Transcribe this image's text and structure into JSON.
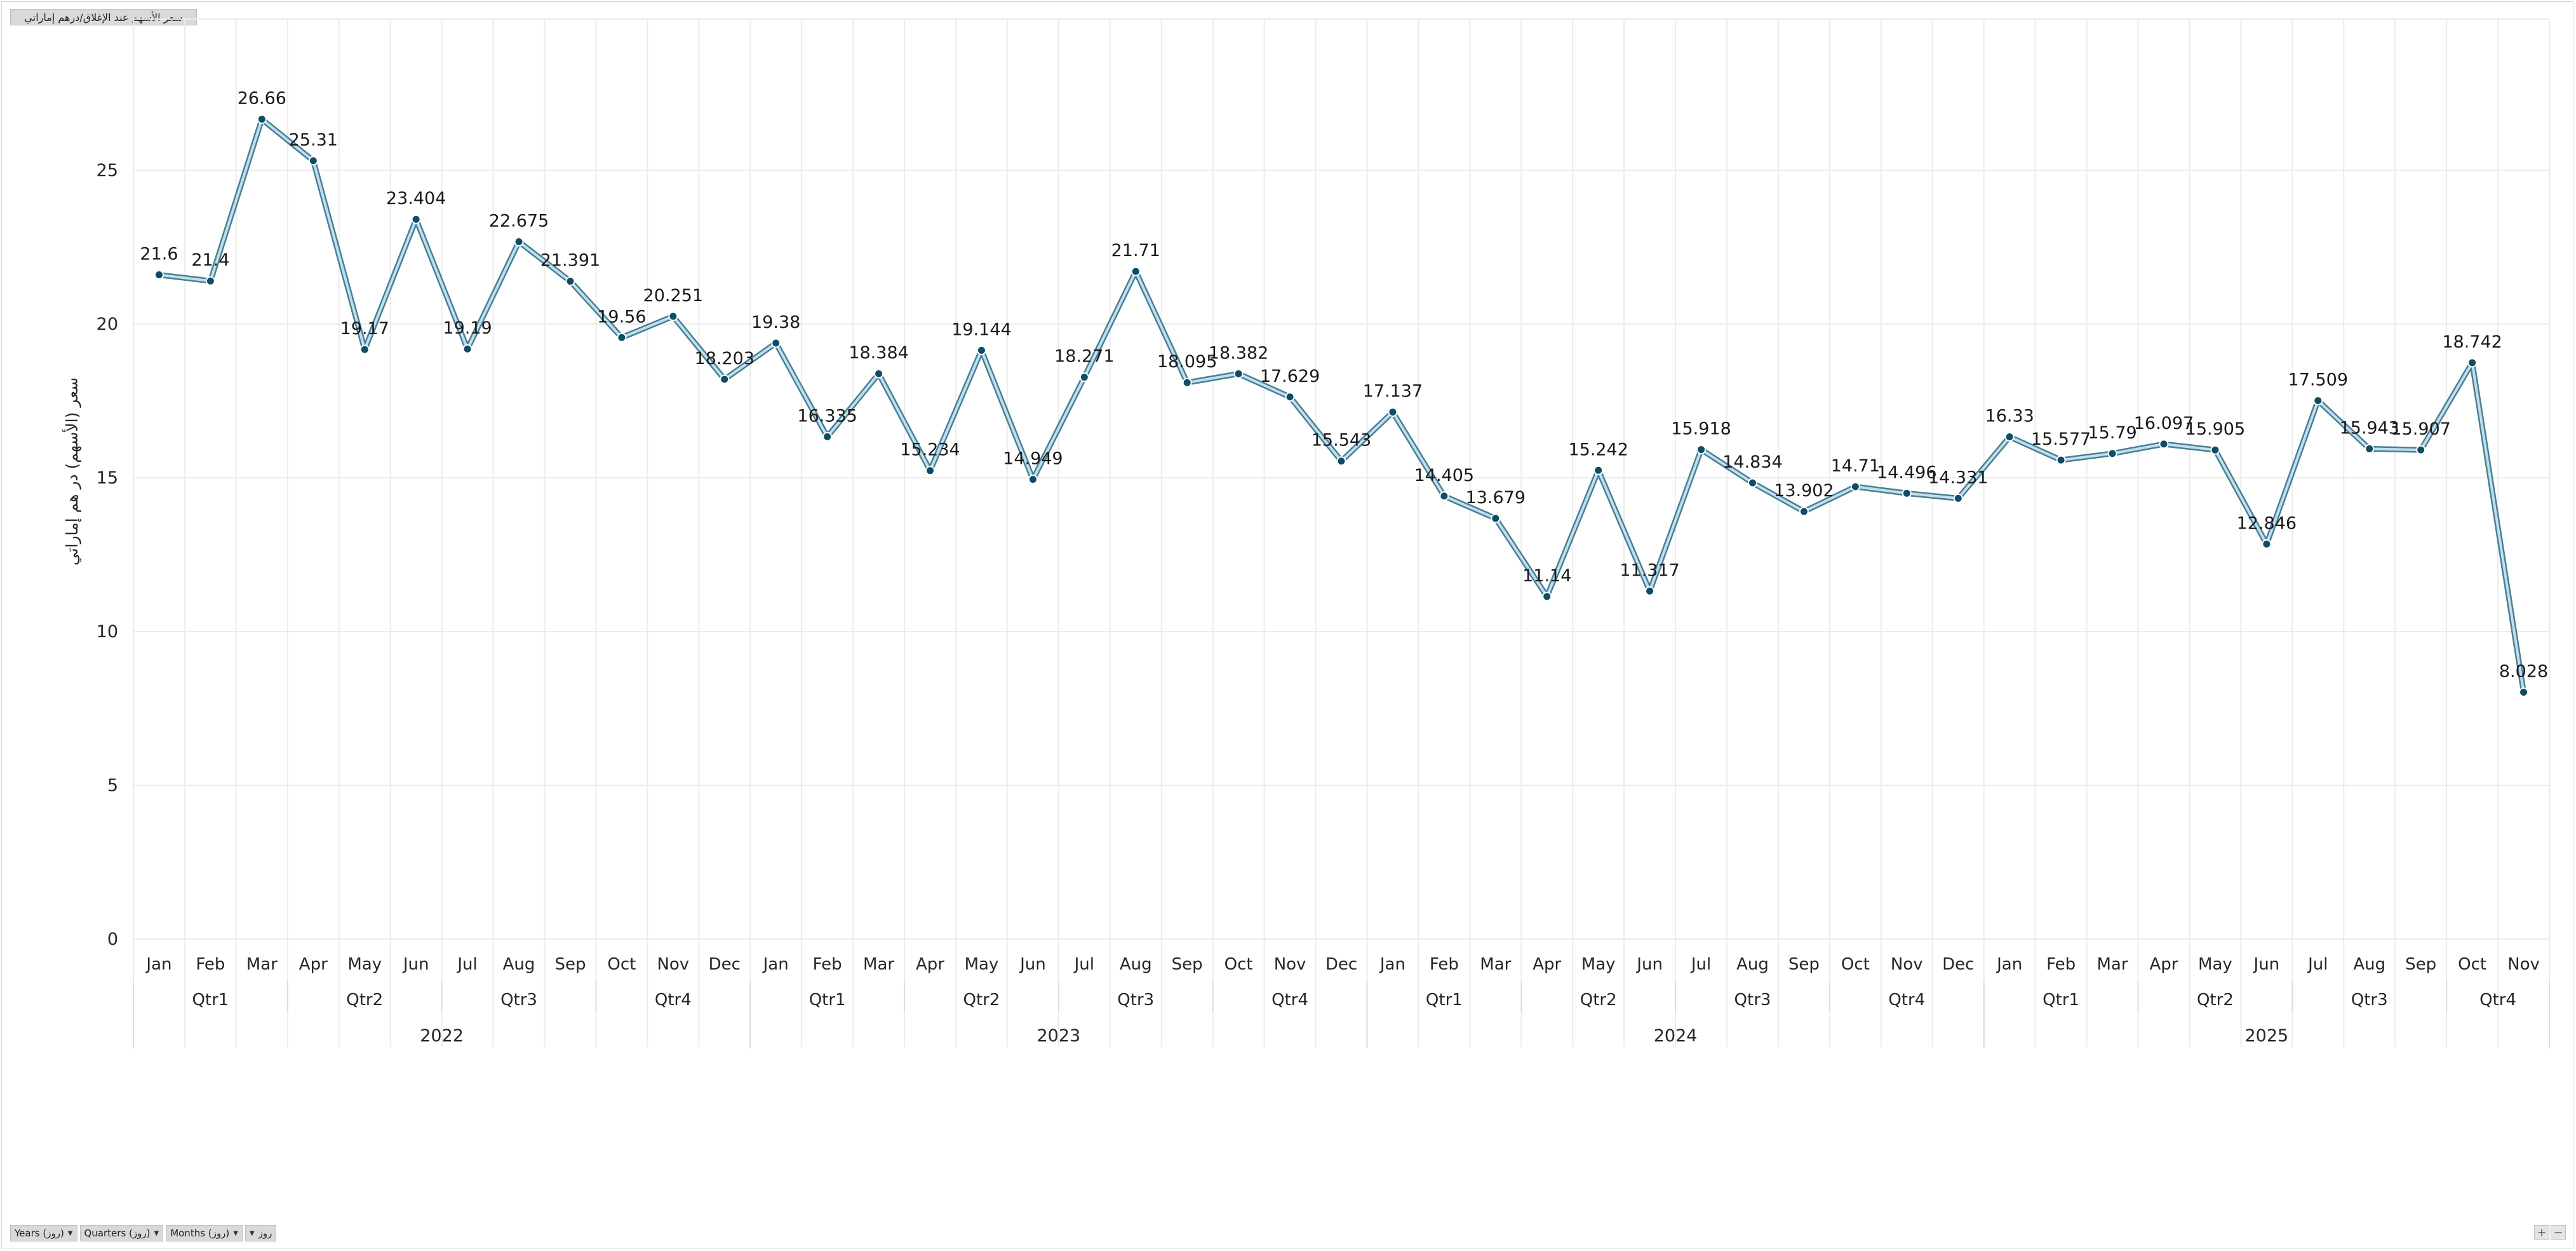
{
  "field_buttons": {
    "top": "سعر الأسهم عند الإغلاق/درهم إماراتي",
    "bottom": [
      "Years (روز)",
      "Quarters (روز)",
      "Months (روز)",
      "روز"
    ]
  },
  "zoom": {
    "plus": "+",
    "minus": "−"
  },
  "colors": {
    "line_outer": "#4a7e95",
    "line_inner": "#bfe0ec",
    "marker": "#0f4c66",
    "grid": "#ececec",
    "text": "#262626"
  },
  "chart_data": {
    "type": "line",
    "title": "",
    "ylabel": "سعر (الأسهم) در هم إماراتي",
    "xlabel": "",
    "ylim": [
      0,
      30
    ],
    "yticks": [
      0,
      5,
      10,
      15,
      20,
      25
    ],
    "grid": true,
    "years": [
      "2022",
      "2023",
      "2024",
      "2025"
    ],
    "quarters": [
      "Qtr1",
      "Qtr2",
      "Qtr3",
      "Qtr4"
    ],
    "categories": [
      "Jan",
      "Feb",
      "Mar",
      "Apr",
      "May",
      "Jun",
      "Jul",
      "Aug",
      "Sep",
      "Oct",
      "Nov",
      "Dec",
      "Jan",
      "Feb",
      "Mar",
      "Apr",
      "May",
      "Jun",
      "Jul",
      "Aug",
      "Sep",
      "Oct",
      "Nov",
      "Dec",
      "Jan",
      "Feb",
      "Mar",
      "Apr",
      "May",
      "Jun",
      "Jul",
      "Aug",
      "Sep",
      "Oct",
      "Nov",
      "Dec",
      "Jan",
      "Feb",
      "Mar",
      "Apr",
      "May",
      "Jun",
      "Jul",
      "Aug",
      "Sep",
      "Oct",
      "Nov"
    ],
    "values": [
      21.6,
      21.4,
      26.66,
      25.31,
      19.17,
      23.404,
      19.19,
      22.675,
      21.391,
      19.56,
      20.251,
      18.203,
      19.38,
      16.335,
      18.384,
      15.234,
      19.144,
      14.949,
      18.271,
      21.71,
      18.095,
      18.382,
      17.629,
      15.543,
      17.137,
      14.405,
      13.679,
      11.14,
      15.242,
      11.317,
      15.918,
      14.834,
      13.902,
      14.71,
      14.496,
      14.331,
      16.33,
      15.577,
      15.79,
      16.097,
      15.905,
      12.846,
      17.509,
      15.943,
      15.907,
      18.742,
      8.028
    ],
    "data_labels": [
      "21.6",
      "21.4",
      "26.66",
      "25.31",
      "19.17",
      "23.404",
      "19.19",
      "22.675",
      "21.391",
      "19.56",
      "20.251",
      "18.203",
      "19.38",
      "16.335",
      "18.384",
      "15.234",
      "19.144",
      "14.949",
      "18.271",
      "21.71",
      "18.095",
      "18.382",
      "17.629",
      "15.543",
      "17.137",
      "14.405",
      "13.679",
      "11.14",
      "15.242",
      "11.317",
      "15.918",
      "14.834",
      "13.902",
      "14.71",
      "14.496",
      "14.331",
      "16.33",
      "15.577",
      "15.79",
      "16.097",
      "15.905",
      "12.846",
      "17.509",
      "15.943",
      "15.907",
      "18.742",
      "8.028"
    ]
  }
}
